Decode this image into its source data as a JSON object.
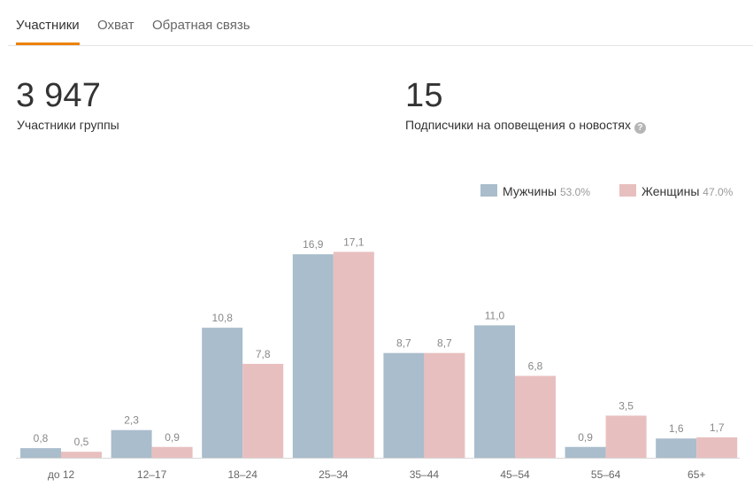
{
  "tabs": [
    {
      "label": "Участники",
      "active": true
    },
    {
      "label": "Охват",
      "active": false
    },
    {
      "label": "Обратная связь",
      "active": false
    }
  ],
  "stats": {
    "members": {
      "value": "3 947",
      "label": "Участники группы"
    },
    "subscribers": {
      "value": "15",
      "label": "Подписчики на оповещения о новостях",
      "help_icon": "question-icon"
    }
  },
  "colors": {
    "male": "#a9bdcc",
    "female": "#e8bfbf",
    "accent": "#ee8208"
  },
  "chart_data": {
    "type": "bar",
    "categories": [
      "до 12",
      "12–17",
      "18–24",
      "25–34",
      "35–44",
      "45–54",
      "55–64",
      "65+"
    ],
    "series": [
      {
        "name": "Мужчины",
        "share": "53.0%",
        "values": [
          0.8,
          2.3,
          10.8,
          16.9,
          8.7,
          11.0,
          0.9,
          1.6
        ],
        "labels": [
          "0,8",
          "2,3",
          "10,8",
          "16,9",
          "8,7",
          "11,0",
          "0,9",
          "1,6"
        ]
      },
      {
        "name": "Женщины",
        "share": "47.0%",
        "values": [
          0.5,
          0.9,
          7.8,
          17.1,
          8.7,
          6.8,
          3.5,
          1.7
        ],
        "labels": [
          "0,5",
          "0,9",
          "7,8",
          "17,1",
          "8,7",
          "6,8",
          "3,5",
          "1,7"
        ]
      }
    ],
    "legend": "top-right",
    "grid": false
  }
}
